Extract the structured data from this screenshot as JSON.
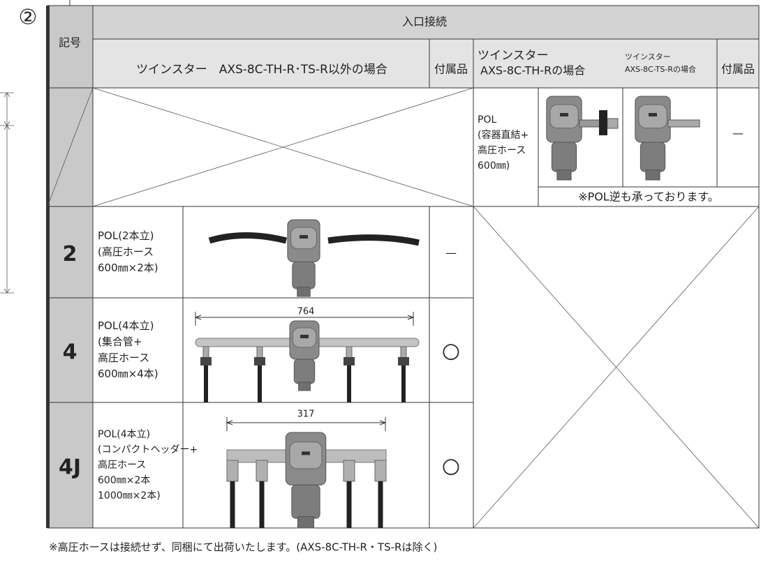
{
  "marker": "②",
  "table": {
    "header": {
      "symbol": "記号",
      "inlet": "入口接続",
      "other_models": "ツインスター　AXS-8C-TH-R･TS-R以外の場合",
      "accessory": "付属品",
      "th_r": [
        "ツインスター",
        "AXS-8C-TH-Rの場合"
      ],
      "ts_r": [
        "ツインスター",
        "AXS-8C-TS-Rの場合"
      ],
      "accessory_2": "付属品"
    },
    "twin_row": {
      "description": [
        "POL",
        "(容器直結+",
        "高圧ホース",
        "600㎜)"
      ],
      "accessory": "—",
      "note": "※POL逆も承っております。"
    },
    "rows": [
      {
        "code": "2",
        "description": [
          "POL(2本立)",
          "(高圧ホース",
          "600㎜×2本)"
        ],
        "accessory": "—"
      },
      {
        "code": "4",
        "description": [
          "POL(4本立)",
          "(集合管+",
          "高圧ホース",
          "600㎜×4本)"
        ],
        "dimension": "764",
        "accessory": "○"
      },
      {
        "code": "4J",
        "description": [
          "POL(4本立)",
          "(コンパクトヘッダー+",
          "高圧ホース",
          "600㎜×2本",
          "1000㎜×2本)"
        ],
        "dimension": "317",
        "accessory": "○"
      }
    ]
  },
  "footnote": "※高圧ホースは接続せず、同梱にて出荷いたします。(AXS-8C-TH-R・TS-Rは除く)"
}
